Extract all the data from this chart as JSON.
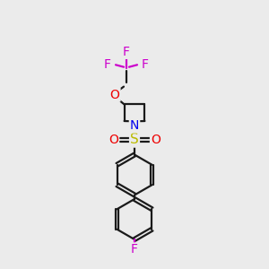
{
  "bg_color": "#ebebeb",
  "bond_color": "#1a1a1a",
  "N_color": "#0000ee",
  "O_color": "#ee0000",
  "S_color": "#bbbb00",
  "F_color": "#cc00cc",
  "bond_width": 1.6,
  "figsize": [
    3.0,
    3.0
  ],
  "dpi": 100,
  "xlim": [
    0,
    10
  ],
  "ylim": [
    0,
    10
  ]
}
